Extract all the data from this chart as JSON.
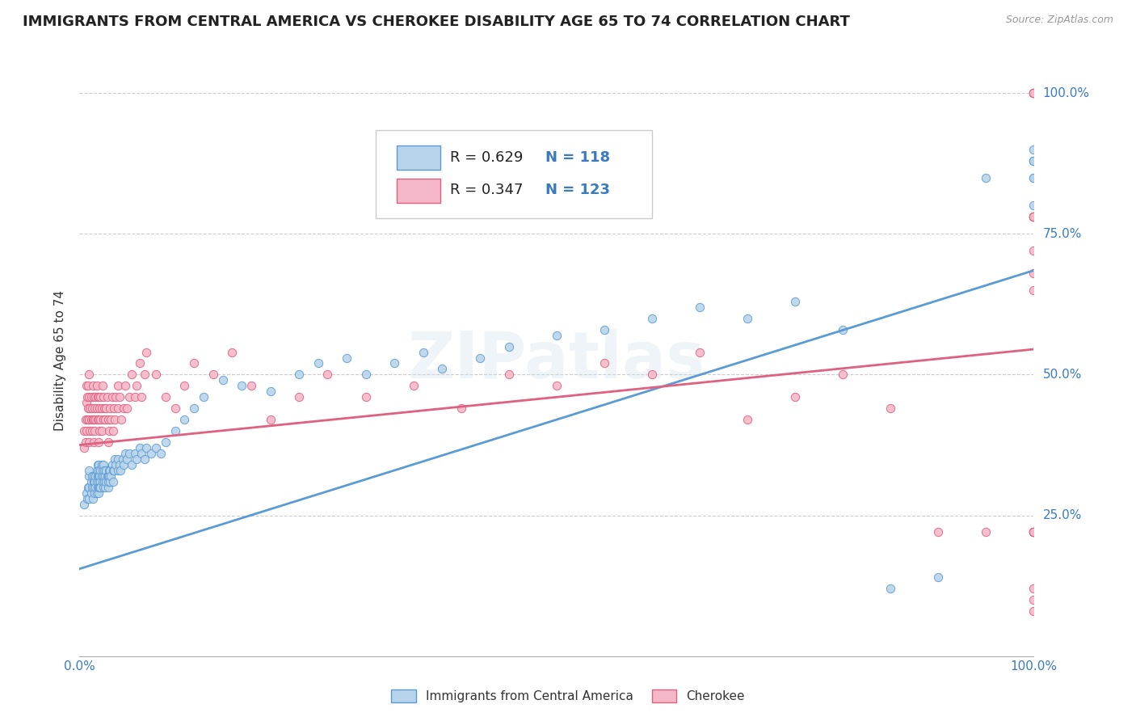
{
  "title": "IMMIGRANTS FROM CENTRAL AMERICA VS CHEROKEE DISABILITY AGE 65 TO 74 CORRELATION CHART",
  "source": "Source: ZipAtlas.com",
  "ylabel": "Disability Age 65 to 74",
  "xlim": [
    0.0,
    1.0
  ],
  "ylim": [
    0.0,
    1.05
  ],
  "ytick_labels": [
    "25.0%",
    "50.0%",
    "75.0%",
    "100.0%"
  ],
  "ytick_positions": [
    0.25,
    0.5,
    0.75,
    1.0
  ],
  "xtick_labels": [
    "0.0%",
    "100.0%"
  ],
  "xtick_positions": [
    0.0,
    1.0
  ],
  "legend_blue_R": "0.629",
  "legend_blue_N": "118",
  "legend_pink_R": "0.347",
  "legend_pink_N": "123",
  "blue_fill": "#b8d4ea",
  "pink_fill": "#f5b8c8",
  "blue_edge": "#5b9bd5",
  "pink_edge": "#e06080",
  "blue_line_color": "#5b9bd5",
  "pink_line_color": "#e06080",
  "legend_text_color": "#3a7abf",
  "watermark": "ZIPatlas",
  "title_fontsize": 13,
  "axis_label_fontsize": 11,
  "tick_fontsize": 11,
  "legend_fontsize": 13,
  "blue_line": {
    "x0": 0.0,
    "y0": 0.155,
    "x1": 1.0,
    "y1": 0.685
  },
  "pink_line": {
    "x0": 0.0,
    "y0": 0.375,
    "x1": 1.0,
    "y1": 0.545
  },
  "blue_x": [
    0.005,
    0.007,
    0.008,
    0.009,
    0.01,
    0.01,
    0.01,
    0.01,
    0.012,
    0.012,
    0.013,
    0.013,
    0.014,
    0.015,
    0.015,
    0.015,
    0.016,
    0.016,
    0.017,
    0.017,
    0.018,
    0.018,
    0.018,
    0.019,
    0.019,
    0.019,
    0.02,
    0.02,
    0.02,
    0.02,
    0.02,
    0.02,
    0.021,
    0.021,
    0.022,
    0.022,
    0.022,
    0.023,
    0.023,
    0.024,
    0.024,
    0.025,
    0.025,
    0.025,
    0.026,
    0.026,
    0.027,
    0.027,
    0.028,
    0.028,
    0.029,
    0.03,
    0.03,
    0.03,
    0.031,
    0.031,
    0.032,
    0.032,
    0.033,
    0.034,
    0.035,
    0.035,
    0.036,
    0.037,
    0.038,
    0.04,
    0.04,
    0.042,
    0.043,
    0.045,
    0.046,
    0.048,
    0.05,
    0.052,
    0.055,
    0.058,
    0.06,
    0.063,
    0.065,
    0.068,
    0.07,
    0.075,
    0.08,
    0.085,
    0.09,
    0.1,
    0.11,
    0.12,
    0.13,
    0.15,
    0.17,
    0.2,
    0.23,
    0.25,
    0.28,
    0.3,
    0.33,
    0.36,
    0.38,
    0.42,
    0.45,
    0.5,
    0.55,
    0.6,
    0.65,
    0.7,
    0.75,
    0.8,
    0.85,
    0.9,
    0.95,
    1.0,
    1.0,
    1.0,
    1.0,
    1.0,
    1.0,
    1.0
  ],
  "blue_y": [
    0.27,
    0.29,
    0.28,
    0.3,
    0.32,
    0.3,
    0.28,
    0.33,
    0.29,
    0.31,
    0.3,
    0.32,
    0.28,
    0.31,
    0.3,
    0.32,
    0.29,
    0.31,
    0.3,
    0.32,
    0.29,
    0.31,
    0.33,
    0.3,
    0.32,
    0.34,
    0.29,
    0.31,
    0.3,
    0.32,
    0.34,
    0.33,
    0.3,
    0.32,
    0.31,
    0.33,
    0.3,
    0.32,
    0.34,
    0.31,
    0.33,
    0.3,
    0.32,
    0.34,
    0.31,
    0.33,
    0.3,
    0.32,
    0.31,
    0.33,
    0.32,
    0.3,
    0.32,
    0.31,
    0.33,
    0.32,
    0.31,
    0.33,
    0.32,
    0.34,
    0.33,
    0.31,
    0.33,
    0.35,
    0.34,
    0.33,
    0.35,
    0.34,
    0.33,
    0.35,
    0.34,
    0.36,
    0.35,
    0.36,
    0.34,
    0.36,
    0.35,
    0.37,
    0.36,
    0.35,
    0.37,
    0.36,
    0.37,
    0.36,
    0.38,
    0.4,
    0.42,
    0.44,
    0.46,
    0.49,
    0.48,
    0.47,
    0.5,
    0.52,
    0.53,
    0.5,
    0.52,
    0.54,
    0.51,
    0.53,
    0.55,
    0.57,
    0.58,
    0.6,
    0.62,
    0.6,
    0.63,
    0.58,
    0.12,
    0.14,
    0.85,
    0.88,
    0.8,
    0.85,
    0.88,
    0.9,
    0.85,
    0.88
  ],
  "pink_x": [
    0.005,
    0.005,
    0.006,
    0.006,
    0.007,
    0.007,
    0.007,
    0.008,
    0.008,
    0.009,
    0.009,
    0.01,
    0.01,
    0.01,
    0.01,
    0.011,
    0.011,
    0.012,
    0.012,
    0.013,
    0.013,
    0.014,
    0.014,
    0.015,
    0.015,
    0.015,
    0.016,
    0.016,
    0.017,
    0.017,
    0.018,
    0.018,
    0.019,
    0.019,
    0.02,
    0.02,
    0.02,
    0.021,
    0.021,
    0.022,
    0.022,
    0.023,
    0.023,
    0.024,
    0.025,
    0.025,
    0.026,
    0.027,
    0.028,
    0.029,
    0.03,
    0.03,
    0.031,
    0.032,
    0.033,
    0.034,
    0.035,
    0.036,
    0.037,
    0.038,
    0.04,
    0.04,
    0.042,
    0.044,
    0.046,
    0.048,
    0.05,
    0.052,
    0.055,
    0.058,
    0.06,
    0.063,
    0.065,
    0.068,
    0.07,
    0.08,
    0.09,
    0.1,
    0.11,
    0.12,
    0.14,
    0.16,
    0.18,
    0.2,
    0.23,
    0.26,
    0.3,
    0.35,
    0.4,
    0.45,
    0.5,
    0.55,
    0.6,
    0.65,
    0.7,
    0.75,
    0.8,
    0.85,
    0.9,
    0.95,
    1.0,
    1.0,
    1.0,
    1.0,
    1.0,
    1.0,
    1.0,
    1.0,
    1.0,
    1.0,
    1.0,
    1.0,
    1.0,
    1.0,
    1.0,
    1.0,
    1.0,
    1.0,
    1.0,
    1.0,
    1.0,
    1.0,
    1.0
  ],
  "pink_y": [
    0.37,
    0.4,
    0.42,
    0.38,
    0.45,
    0.48,
    0.4,
    0.42,
    0.46,
    0.44,
    0.48,
    0.38,
    0.42,
    0.46,
    0.5,
    0.4,
    0.44,
    0.42,
    0.46,
    0.4,
    0.44,
    0.48,
    0.42,
    0.38,
    0.42,
    0.46,
    0.44,
    0.4,
    0.46,
    0.42,
    0.44,
    0.48,
    0.42,
    0.46,
    0.38,
    0.42,
    0.46,
    0.4,
    0.44,
    0.42,
    0.46,
    0.4,
    0.44,
    0.48,
    0.42,
    0.46,
    0.44,
    0.42,
    0.44,
    0.46,
    0.38,
    0.42,
    0.4,
    0.44,
    0.42,
    0.46,
    0.4,
    0.44,
    0.42,
    0.46,
    0.44,
    0.48,
    0.46,
    0.42,
    0.44,
    0.48,
    0.44,
    0.46,
    0.5,
    0.46,
    0.48,
    0.52,
    0.46,
    0.5,
    0.54,
    0.5,
    0.46,
    0.44,
    0.48,
    0.52,
    0.5,
    0.54,
    0.48,
    0.42,
    0.46,
    0.5,
    0.46,
    0.48,
    0.44,
    0.5,
    0.48,
    0.52,
    0.5,
    0.54,
    0.42,
    0.46,
    0.5,
    0.44,
    0.22,
    0.22,
    0.78,
    0.78,
    0.78,
    0.78,
    0.78,
    0.78,
    1.0,
    1.0,
    1.0,
    1.0,
    1.0,
    0.68,
    0.72,
    0.65,
    0.1,
    0.12,
    0.08,
    0.22,
    0.22,
    0.22,
    0.22,
    0.22,
    0.22
  ]
}
